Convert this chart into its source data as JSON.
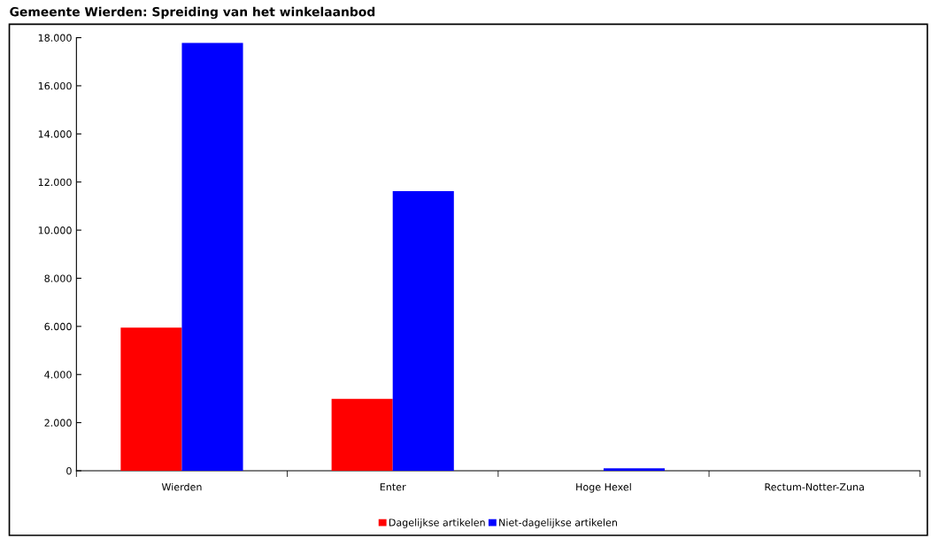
{
  "chart_data": {
    "type": "bar",
    "title": "Gemeente Wierden: Spreiding van het winkelaanbod",
    "categories": [
      "Wierden",
      "Enter",
      "Hoge Hexel",
      "Rectum-Notter-Zuna"
    ],
    "series": [
      {
        "name": "Dagelijkse artikelen",
        "color": "#ff0000",
        "values": [
          5950,
          2990,
          0,
          0
        ]
      },
      {
        "name": "Niet-dagelijkse artikelen",
        "color": "#0000ff",
        "values": [
          17780,
          11620,
          100,
          0
        ]
      }
    ],
    "ylim": [
      0,
      18000
    ],
    "yticks": [
      {
        "value": 0,
        "label": "0"
      },
      {
        "value": 2000,
        "label": "2.000"
      },
      {
        "value": 4000,
        "label": "4.000"
      },
      {
        "value": 6000,
        "label": "6.000"
      },
      {
        "value": 8000,
        "label": "8.000"
      },
      {
        "value": 10000,
        "label": "10.000"
      },
      {
        "value": 12000,
        "label": "12.000"
      },
      {
        "value": 14000,
        "label": "14.000"
      },
      {
        "value": 16000,
        "label": "16.000"
      },
      {
        "value": 18000,
        "label": "18.000"
      }
    ],
    "grid": false,
    "legend": "bottom"
  }
}
